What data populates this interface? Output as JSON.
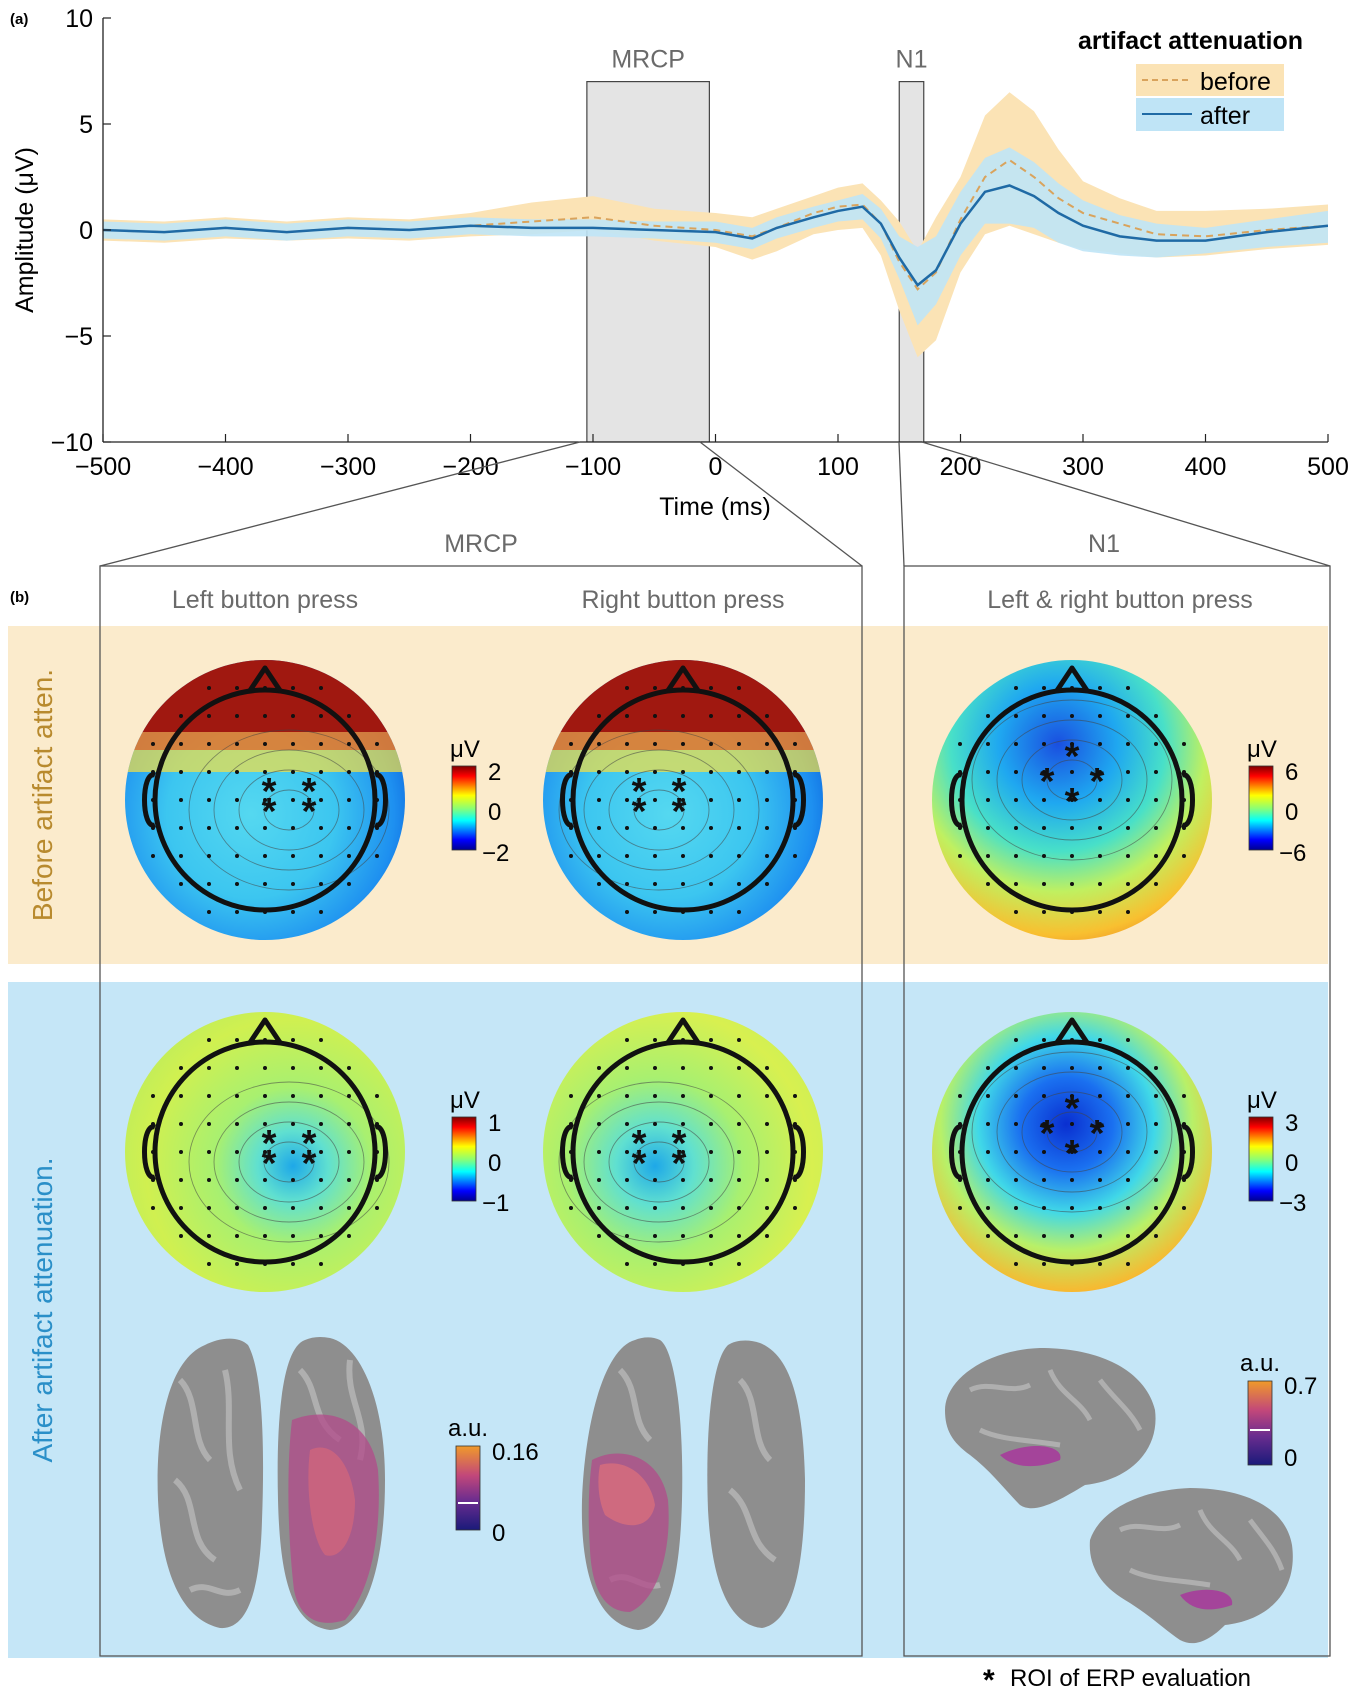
{
  "panel_labels": {
    "a": "(a)",
    "b": "(b)"
  },
  "colors": {
    "before_band": "#fbe3b5",
    "after_band": "#bfe4f6",
    "after_line": "#1f6aa5",
    "before_line": "#d9a35c",
    "window_fill": "#e4e4e4",
    "bg_before": "#fbebcc",
    "bg_after": "#c5e6f7",
    "label_before": "#b88a2e",
    "label_after": "#2a8fc8"
  },
  "chart_data": {
    "type": "line",
    "xlabel": "Time (ms)",
    "ylabel": "Amplitude (μV)",
    "xlim": [
      -500,
      500
    ],
    "ylim": [
      -10,
      10
    ],
    "xticks": [
      "−500",
      "−400",
      "−300",
      "−200",
      "−100",
      "0",
      "100",
      "200",
      "300",
      "400",
      "500"
    ],
    "yticks": [
      "10",
      "5",
      "0",
      "−5",
      "−10"
    ],
    "xtick_values": [
      -500,
      -400,
      -300,
      -200,
      -100,
      0,
      100,
      200,
      300,
      400,
      500
    ],
    "ytick_values": [
      10,
      5,
      0,
      -5,
      -10
    ],
    "legend": {
      "title": "artifact attenuation",
      "position": "top-right"
    },
    "windows": [
      {
        "label": "MRCP",
        "x_start": -105,
        "x_end": -5
      },
      {
        "label": "N1",
        "x_start": 150,
        "x_end": 170
      }
    ],
    "x": [
      -500,
      -450,
      -400,
      -350,
      -300,
      -250,
      -200,
      -150,
      -100,
      -50,
      0,
      30,
      50,
      80,
      100,
      120,
      135,
      150,
      165,
      180,
      200,
      220,
      240,
      260,
      280,
      300,
      330,
      360,
      400,
      450,
      500
    ],
    "series": [
      {
        "name": "before",
        "style": "dashed",
        "values": [
          0.0,
          -0.1,
          0.1,
          -0.1,
          0.1,
          0.0,
          0.2,
          0.4,
          0.6,
          0.2,
          0.0,
          -0.3,
          0.1,
          0.8,
          1.1,
          1.2,
          0.3,
          -1.5,
          -2.8,
          -2.0,
          0.5,
          2.5,
          3.3,
          2.5,
          1.5,
          0.8,
          0.3,
          -0.2,
          -0.3,
          0.0,
          0.2
        ],
        "band_lower": [
          -0.5,
          -0.6,
          -0.4,
          -0.5,
          -0.4,
          -0.5,
          -0.3,
          -0.2,
          0.0,
          -0.5,
          -0.8,
          -1.4,
          -1.0,
          -0.2,
          0.0,
          0.1,
          -1.2,
          -3.8,
          -6.0,
          -5.2,
          -2.0,
          -0.2,
          0.2,
          -0.2,
          -0.6,
          -0.9,
          -1.1,
          -1.3,
          -1.2,
          -0.9,
          -0.7
        ],
        "band_upper": [
          0.5,
          0.4,
          0.6,
          0.4,
          0.6,
          0.5,
          0.8,
          1.3,
          1.6,
          1.0,
          0.8,
          0.6,
          1.0,
          1.6,
          2.0,
          2.2,
          1.4,
          0.4,
          -1.0,
          0.6,
          2.5,
          5.4,
          6.5,
          5.6,
          3.8,
          2.3,
          1.5,
          0.9,
          0.9,
          1.0,
          1.2
        ]
      },
      {
        "name": "after",
        "style": "solid",
        "values": [
          0.0,
          -0.1,
          0.1,
          -0.1,
          0.1,
          0.0,
          0.2,
          0.1,
          0.1,
          0.0,
          -0.1,
          -0.4,
          0.1,
          0.6,
          0.9,
          1.1,
          0.3,
          -1.3,
          -2.6,
          -1.9,
          0.3,
          1.8,
          2.1,
          1.6,
          0.8,
          0.2,
          -0.3,
          -0.5,
          -0.5,
          -0.1,
          0.2
        ],
        "band_lower": [
          -0.4,
          -0.5,
          -0.3,
          -0.5,
          -0.3,
          -0.4,
          -0.2,
          -0.3,
          -0.3,
          -0.4,
          -0.6,
          -0.9,
          -0.4,
          0.1,
          0.4,
          0.5,
          -0.4,
          -2.3,
          -4.5,
          -3.5,
          -1.2,
          0.3,
          0.3,
          0.1,
          -0.6,
          -1.0,
          -1.2,
          -1.3,
          -1.1,
          -0.8,
          -0.6
        ],
        "band_upper": [
          0.4,
          0.3,
          0.5,
          0.3,
          0.5,
          0.4,
          0.6,
          0.5,
          0.5,
          0.4,
          0.4,
          0.1,
          0.6,
          1.1,
          1.4,
          1.7,
          1.0,
          -0.3,
          -0.8,
          -0.3,
          1.8,
          3.4,
          3.9,
          3.2,
          2.2,
          1.4,
          0.7,
          0.3,
          0.1,
          0.5,
          0.9
        ]
      }
    ]
  },
  "panel_b": {
    "group_labels": {
      "mrcp": "MRCP",
      "n1": "N1"
    },
    "columns": [
      "Left button press",
      "Right button press",
      "Left & right button press"
    ],
    "rows": [
      "Before artifact atten.",
      "After artifact attenuation."
    ],
    "colorbars": {
      "before_mrcp": {
        "unit": "μV",
        "max": "2",
        "mid": "0",
        "min": "−2"
      },
      "before_n1": {
        "unit": "μV",
        "max": "6",
        "mid": "0",
        "min": "−6"
      },
      "after_mrcp": {
        "unit": "μV",
        "max": "1",
        "mid": "0",
        "min": "−1"
      },
      "after_n1": {
        "unit": "μV",
        "max": "3",
        "mid": "0",
        "min": "−3"
      },
      "source_mrcp": {
        "unit": "a.u.",
        "max": "0.16",
        "min": "0"
      },
      "source_n1": {
        "unit": "a.u.",
        "max": "0.7",
        "min": "0"
      }
    },
    "footnote": "ROI of ERP evaluation",
    "footnote_symbol": "*"
  }
}
